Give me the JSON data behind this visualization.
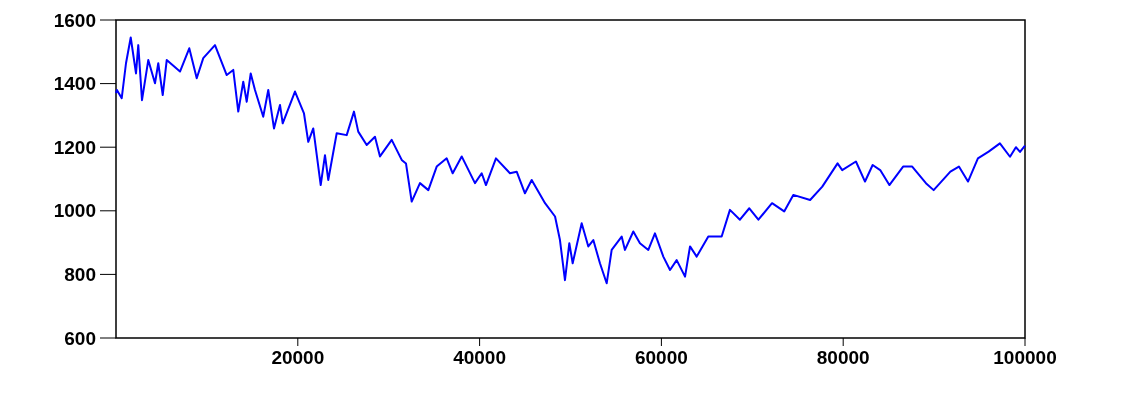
{
  "chart_data": {
    "type": "line",
    "xlim": [
      0,
      100000
    ],
    "xticks": [
      20000,
      40000,
      60000,
      80000,
      100000
    ],
    "ylim": [
      600,
      1600
    ],
    "yticks": [
      600,
      800,
      1000,
      1200,
      1400,
      1600
    ],
    "grid": false,
    "marker": "none",
    "line_style": "solid",
    "series": [
      {
        "color": "#0000ff",
        "x": [
          0,
          100,
          630,
          1100,
          1620,
          2200,
          2450,
          2860,
          3550,
          4290,
          4650,
          5140,
          5580,
          7040,
          8060,
          8880,
          9600,
          10890,
          12180,
          12900,
          13450,
          14000,
          14380,
          14820,
          15290,
          16200,
          16750,
          17380,
          18040,
          18340,
          19690,
          20680,
          21150,
          21700,
          22520,
          22990,
          23350,
          24280,
          25380,
          26180,
          26650,
          27580,
          28490,
          29040,
          30330,
          31430,
          31900,
          32530,
          33440,
          34360,
          35280,
          36380,
          37040,
          38030,
          39490,
          40230,
          40700,
          41800,
          43340,
          44080,
          44990,
          45730,
          47200,
          48300,
          48840,
          49390,
          49870,
          50240,
          51230,
          51960,
          52510,
          53240,
          53980,
          54530,
          55630,
          55990,
          56910,
          57640,
          58560,
          59290,
          60210,
          60950,
          61680,
          62600,
          63150,
          63880,
          65160,
          66630,
          67540,
          68640,
          69670,
          70670,
          72170,
          73510,
          74510,
          76360,
          77700,
          79380,
          79890,
          81400,
          82400,
          83240,
          84070,
          85080,
          86590,
          87590,
          89100,
          89950,
          91790,
          92730,
          93730,
          94820,
          96000,
          97240,
          98350,
          99000,
          99450,
          100000
        ],
        "values": [
          1370,
          1380,
          1354,
          1464,
          1545,
          1432,
          1521,
          1348,
          1474,
          1401,
          1464,
          1364,
          1474,
          1438,
          1511,
          1417,
          1480,
          1521,
          1427,
          1443,
          1312,
          1406,
          1343,
          1432,
          1380,
          1296,
          1380,
          1259,
          1333,
          1275,
          1375,
          1306,
          1217,
          1259,
          1081,
          1175,
          1097,
          1244,
          1238,
          1312,
          1249,
          1207,
          1233,
          1171,
          1223,
          1160,
          1149,
          1029,
          1087,
          1065,
          1139,
          1165,
          1118,
          1171,
          1087,
          1118,
          1081,
          1165,
          1118,
          1123,
          1055,
          1097,
          1024,
          982,
          908,
          782,
          898,
          835,
          961,
          888,
          908,
          835,
          772,
          877,
          919,
          877,
          935,
          898,
          877,
          929,
          856,
          814,
          845,
          793,
          888,
          856,
          919,
          919,
          1003,
          972,
          1008,
          972,
          1024,
          998,
          1050,
          1034,
          1076,
          1149,
          1128,
          1155,
          1092,
          1144,
          1128,
          1081,
          1139,
          1139,
          1087,
          1065,
          1123,
          1139,
          1092,
          1165,
          1186,
          1212,
          1170,
          1200,
          1185,
          1205
        ]
      }
    ]
  }
}
